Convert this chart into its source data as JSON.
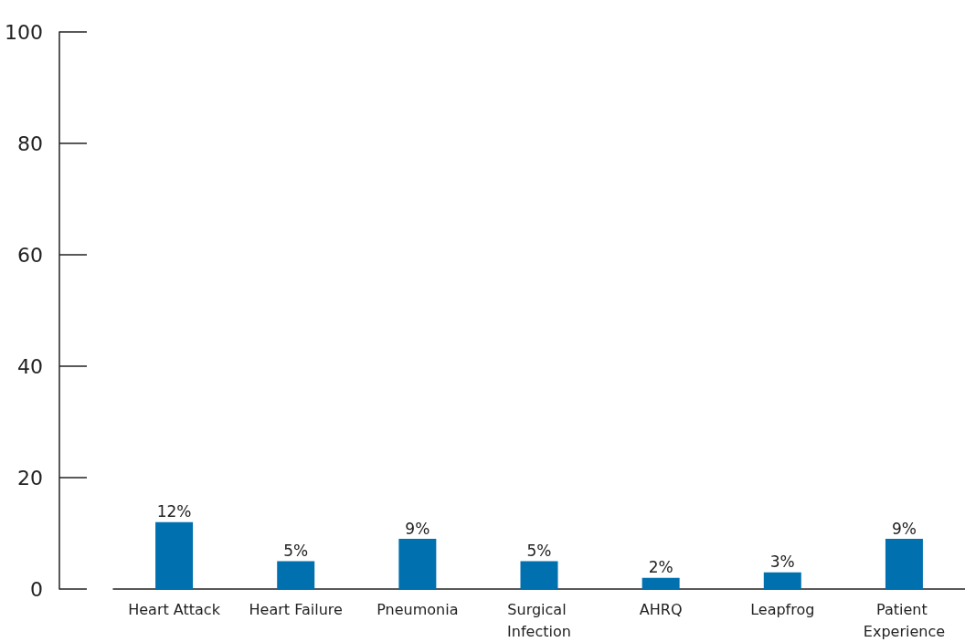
{
  "chart_data": {
    "type": "bar",
    "categories": [
      "Heart Attack",
      "Heart Failure",
      "Pneumonia",
      "Surgical Infection",
      "AHRQ",
      "Leapfrog",
      "Patient Experience"
    ],
    "values": [
      12,
      5,
      9,
      5,
      2,
      3,
      9
    ],
    "value_labels": [
      "12%",
      "5%",
      "9%",
      "5%",
      "2%",
      "3%",
      "9%"
    ],
    "color": "#0070af",
    "ylim": [
      0,
      100
    ],
    "yticks": [
      0,
      20,
      40,
      60,
      80,
      100
    ],
    "grid": false
  }
}
